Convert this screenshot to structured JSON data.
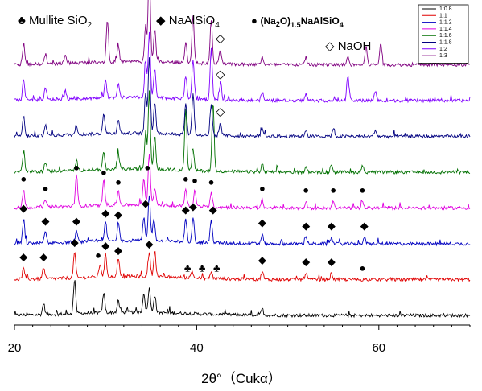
{
  "chart_data": {
    "type": "line",
    "xlabel": "2θ°（Cukα）",
    "xlim": [
      20,
      70
    ],
    "x_ticks": [
      20,
      40,
      60
    ],
    "ylabel": "",
    "grid": false,
    "legend_position": "top-right",
    "series": [
      {
        "name": "1:0.8",
        "color": "#000000",
        "offset": 0,
        "peaks": [
          [
            23.2,
            14
          ],
          [
            26.6,
            42
          ],
          [
            29.8,
            24
          ],
          [
            31.4,
            14
          ],
          [
            34.2,
            24
          ],
          [
            34.8,
            30
          ],
          [
            35.4,
            22
          ],
          [
            47.2,
            8
          ]
        ]
      },
      {
        "name": "1:1",
        "color": "#e00000",
        "offset": 1,
        "peaks": [
          [
            21.0,
            14
          ],
          [
            23.2,
            14
          ],
          [
            26.6,
            32
          ],
          [
            29.4,
            16
          ],
          [
            30.0,
            28
          ],
          [
            31.4,
            22
          ],
          [
            34.8,
            30
          ],
          [
            35.4,
            32
          ],
          [
            39.5,
            8
          ],
          [
            41.6,
            8
          ],
          [
            47.2,
            10
          ],
          [
            52.0,
            8
          ],
          [
            54.8,
            8
          ]
        ]
      },
      {
        "name": "1:1.2",
        "color": "#0000c0",
        "offset": 2,
        "peaks": [
          [
            21.0,
            30
          ],
          [
            23.4,
            14
          ],
          [
            26.8,
            14
          ],
          [
            30.0,
            24
          ],
          [
            31.4,
            22
          ],
          [
            34.2,
            28
          ],
          [
            34.8,
            58
          ],
          [
            35.3,
            28
          ],
          [
            38.8,
            28
          ],
          [
            39.6,
            32
          ],
          [
            41.6,
            28
          ],
          [
            47.2,
            12
          ],
          [
            52.0,
            8
          ],
          [
            54.8,
            8
          ],
          [
            58.4,
            8
          ]
        ]
      },
      {
        "name": "1:1.4",
        "color": "#e000e0",
        "offset": 3,
        "peaks": [
          [
            21.0,
            22
          ],
          [
            23.4,
            10
          ],
          [
            26.8,
            40
          ],
          [
            29.8,
            30
          ],
          [
            31.4,
            18
          ],
          [
            34.2,
            34
          ],
          [
            34.8,
            64
          ],
          [
            35.4,
            22
          ],
          [
            38.8,
            22
          ],
          [
            39.8,
            20
          ],
          [
            41.6,
            18
          ],
          [
            47.2,
            10
          ],
          [
            52.0,
            8
          ],
          [
            55.0,
            8
          ],
          [
            58.2,
            8
          ]
        ]
      },
      {
        "name": "1:1.6",
        "color": "#007000",
        "offset": 4,
        "peaks": [
          [
            21.0,
            26
          ],
          [
            23.4,
            12
          ],
          [
            26.8,
            12
          ],
          [
            29.8,
            20
          ],
          [
            31.4,
            20
          ],
          [
            34.4,
            46
          ],
          [
            34.8,
            96
          ],
          [
            35.4,
            40
          ],
          [
            38.8,
            78
          ],
          [
            39.6,
            26
          ],
          [
            41.8,
            86
          ],
          [
            47.2,
            10
          ],
          [
            52.0,
            8
          ],
          [
            54.8,
            10
          ],
          [
            58.2,
            8
          ]
        ]
      },
      {
        "name": "1:1.8",
        "color": "#000080",
        "offset": 5,
        "peaks": [
          [
            21.0,
            24
          ],
          [
            23.4,
            14
          ],
          [
            26.8,
            12
          ],
          [
            29.8,
            26
          ],
          [
            31.4,
            18
          ],
          [
            34.4,
            50
          ],
          [
            34.8,
            96
          ],
          [
            35.4,
            40
          ],
          [
            38.8,
            38
          ],
          [
            39.6,
            52
          ],
          [
            41.6,
            38
          ],
          [
            42.6,
            16
          ],
          [
            47.2,
            10
          ],
          [
            52.0,
            8
          ],
          [
            55.0,
            10
          ],
          [
            59.6,
            8
          ]
        ]
      },
      {
        "name": "1:2",
        "color": "#8000ff",
        "offset": 6,
        "peaks": [
          [
            21.0,
            26
          ],
          [
            23.4,
            14
          ],
          [
            25.6,
            10
          ],
          [
            30.0,
            24
          ],
          [
            31.4,
            18
          ],
          [
            34.4,
            46
          ],
          [
            34.8,
            80
          ],
          [
            35.4,
            36
          ],
          [
            38.8,
            28
          ],
          [
            39.6,
            50
          ],
          [
            41.6,
            62
          ],
          [
            42.6,
            18
          ],
          [
            47.2,
            10
          ],
          [
            52.0,
            8
          ],
          [
            56.6,
            30
          ],
          [
            59.6,
            12
          ]
        ]
      },
      {
        "name": "1:3",
        "color": "#800080",
        "offset": 7,
        "peaks": [
          [
            21.0,
            26
          ],
          [
            23.4,
            12
          ],
          [
            25.6,
            10
          ],
          [
            30.2,
            52
          ],
          [
            31.4,
            20
          ],
          [
            34.4,
            46
          ],
          [
            34.8,
            120
          ],
          [
            35.4,
            40
          ],
          [
            38.8,
            26
          ],
          [
            39.6,
            60
          ],
          [
            41.6,
            54
          ],
          [
            42.6,
            18
          ],
          [
            47.2,
            10
          ],
          [
            52.0,
            8
          ],
          [
            56.6,
            10
          ],
          [
            58.6,
            22
          ],
          [
            60.2,
            26
          ]
        ]
      }
    ],
    "phase_legend": [
      {
        "symbol": "♣",
        "label": "Mullite",
        "extra_main": "SiO",
        "extra_sub": "2"
      },
      {
        "symbol": "◆",
        "label": "NaAlSiO",
        "label_sub": "4"
      },
      {
        "symbol": "●",
        "label_parts": [
          "(Na",
          "2",
          "O)",
          "1.5",
          "NaAlSiO",
          "4"
        ]
      },
      {
        "symbol": "◇",
        "label": "NaOH"
      }
    ],
    "annotations": [
      {
        "series": 1,
        "symbol": "◆",
        "x": [
          21.0,
          23.2,
          26.6,
          30.0,
          31.4,
          34.8,
          47.2,
          52.0,
          54.8
        ]
      },
      {
        "series": 1,
        "symbol": "●",
        "x": [
          29.2,
          58.2
        ]
      },
      {
        "series": 1,
        "symbol": "♣",
        "x": [
          39.0,
          40.6,
          42.2
        ]
      },
      {
        "series": 2,
        "symbol": "◆",
        "x": [
          21.0,
          23.4,
          26.8,
          30.0,
          31.4,
          34.4,
          38.8,
          39.6,
          41.8,
          47.2,
          52.0,
          54.8,
          58.4
        ]
      },
      {
        "series": 3,
        "symbol": "●",
        "x": [
          21.0,
          23.4,
          26.8,
          29.8,
          31.4,
          34.6,
          38.8,
          39.8,
          41.6,
          47.2,
          52.0,
          55.0,
          58.2
        ]
      },
      {
        "series": 5,
        "symbol": "◇",
        "x": [
          42.6
        ]
      },
      {
        "series": 6,
        "symbol": "◇",
        "x": [
          42.6
        ]
      },
      {
        "series": 7,
        "symbol": "◇",
        "x": [
          42.6
        ]
      }
    ]
  }
}
